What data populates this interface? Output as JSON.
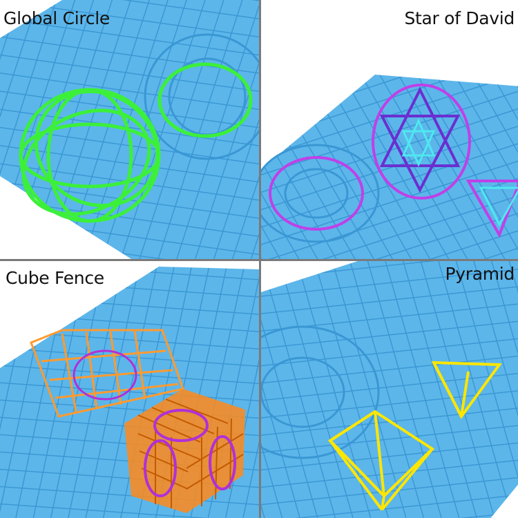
{
  "panels": [
    {
      "title": "Global Circle",
      "shape_color": "#3cf03a"
    },
    {
      "title": "Star of David",
      "shape_color": "#c040e8",
      "accent_color": "#6a2fd0",
      "inner_color": "#4ee8f0"
    },
    {
      "title": "Cube Fence",
      "shape_color": "#ff8a1a",
      "accent_color": "#b030d8"
    },
    {
      "title": "Pyramid",
      "shape_color": "#ffe600"
    }
  ],
  "colors": {
    "mat": "#5cb6ea",
    "mat_grid": "#3a97d4",
    "divider": "#7a7a7a"
  }
}
